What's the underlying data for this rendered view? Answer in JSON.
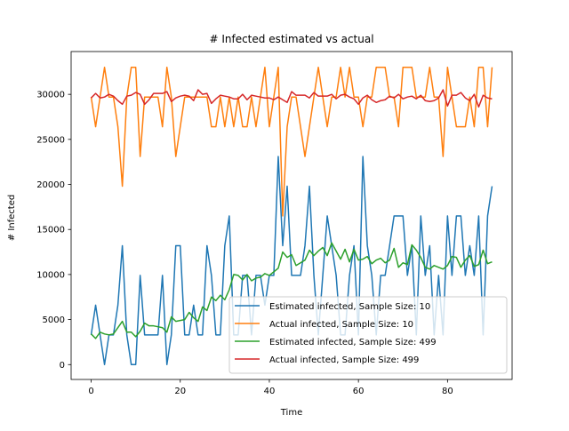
{
  "chart_data": {
    "type": "line",
    "title": "# Infected estimated vs actual",
    "xlabel": "Time",
    "ylabel": "# Infected",
    "xlim": [
      -4.5,
      94.5
    ],
    "ylim": [
      -1650,
      34750
    ],
    "xticks": [
      0,
      20,
      40,
      60,
      80
    ],
    "yticks": [
      0,
      5000,
      10000,
      15000,
      20000,
      25000,
      30000
    ],
    "grid": false,
    "legend_position": "lower-right",
    "series": [
      {
        "name": "Estimated infected, Sample Size: 10",
        "color": "#1f77b4",
        "values": [
          3300,
          6600,
          3300,
          0,
          3300,
          3300,
          6600,
          13200,
          3300,
          0,
          0,
          9900,
          3300,
          3300,
          3300,
          3300,
          9900,
          0,
          3300,
          13200,
          13200,
          3300,
          3300,
          6600,
          3300,
          3300,
          13200,
          9900,
          3300,
          3300,
          13200,
          16500,
          3300,
          3300,
          9900,
          9900,
          3300,
          9900,
          9900,
          6600,
          9900,
          9900,
          23100,
          13200,
          19800,
          9900,
          9900,
          9900,
          13200,
          19800,
          9900,
          3300,
          9900,
          16500,
          13200,
          9900,
          3300,
          3300,
          9900,
          13200,
          3300,
          23100,
          13200,
          9900,
          3300,
          9900,
          9900,
          13200,
          16500,
          16500,
          16500,
          9900,
          13200,
          3300,
          16500,
          9900,
          13200,
          3300,
          9900,
          3300,
          16500,
          9900,
          16500,
          16500,
          9900,
          13200,
          9900,
          16500,
          3300,
          16500,
          19800
        ]
      },
      {
        "name": "Actual infected, Sample Size: 10",
        "color": "#ff7f0e",
        "values": [
          29700,
          26400,
          29700,
          33000,
          29700,
          29700,
          26400,
          19800,
          29700,
          33000,
          33000,
          23100,
          29700,
          29700,
          29700,
          29700,
          26400,
          33000,
          29700,
          23100,
          26400,
          29700,
          29700,
          29700,
          29700,
          29700,
          29700,
          26400,
          26400,
          29700,
          26400,
          29700,
          26400,
          29700,
          26400,
          26400,
          29700,
          26400,
          29700,
          33000,
          26400,
          29700,
          33000,
          16500,
          26400,
          29700,
          29700,
          26400,
          23100,
          26400,
          29700,
          33000,
          29700,
          26400,
          29700,
          29700,
          33000,
          29700,
          33000,
          29700,
          29700,
          26400,
          29700,
          29700,
          33000,
          33000,
          33000,
          29700,
          29700,
          26400,
          33000,
          33000,
          33000,
          29700,
          29700,
          29700,
          33000,
          29700,
          29700,
          23100,
          33000,
          29700,
          26400,
          26400,
          26400,
          29700,
          26400,
          33000,
          33000,
          26400,
          33000
        ]
      },
      {
        "name": "Estimated infected, Sample Size: 499",
        "color": "#2ca02c",
        "values": [
          3400,
          2900,
          3600,
          3400,
          3300,
          3400,
          4100,
          4800,
          3600,
          3600,
          3100,
          3700,
          4600,
          4300,
          4300,
          4200,
          4100,
          3600,
          5300,
          4800,
          4900,
          5000,
          5800,
          5200,
          4800,
          6400,
          6000,
          7500,
          7100,
          7700,
          7200,
          8300,
          10000,
          9900,
          9400,
          10000,
          9300,
          9600,
          9700,
          10100,
          9900,
          10300,
          10700,
          12500,
          11900,
          12200,
          11000,
          11300,
          11600,
          12700,
          12100,
          12600,
          13000,
          12100,
          13500,
          12600,
          11700,
          12800,
          11400,
          12800,
          11600,
          11700,
          12000,
          11200,
          11600,
          11800,
          11300,
          11600,
          12900,
          10800,
          11300,
          11100,
          13300,
          12700,
          11900,
          10800,
          10600,
          11000,
          10800,
          10600,
          11000,
          12000,
          11900,
          10800,
          11600,
          12100,
          10900,
          11100,
          12700,
          11200,
          11400
        ]
      },
      {
        "name": "Actual infected, Sample Size: 499",
        "color": "#d62728",
        "values": [
          29600,
          30100,
          29600,
          29700,
          30000,
          29800,
          29300,
          28900,
          29800,
          29900,
          30200,
          30000,
          28900,
          29400,
          30100,
          30100,
          30100,
          30300,
          29200,
          29600,
          29800,
          29900,
          29800,
          29300,
          30500,
          30000,
          30100,
          29000,
          29500,
          29900,
          29800,
          29700,
          29500,
          29500,
          30000,
          29400,
          29900,
          29800,
          29700,
          29600,
          29600,
          29400,
          29700,
          29400,
          29100,
          30300,
          29900,
          29900,
          29900,
          29600,
          30200,
          29800,
          29800,
          29800,
          30000,
          29500,
          29900,
          30000,
          29700,
          29500,
          28900,
          29600,
          29900,
          29400,
          29100,
          29300,
          29400,
          29800,
          29600,
          30000,
          29500,
          29700,
          29800,
          29500,
          29900,
          29300,
          29200,
          29300,
          29600,
          30500,
          28700,
          29900,
          29900,
          30200,
          29600,
          29300,
          30000,
          28600,
          29900,
          29600,
          29500
        ]
      }
    ]
  }
}
